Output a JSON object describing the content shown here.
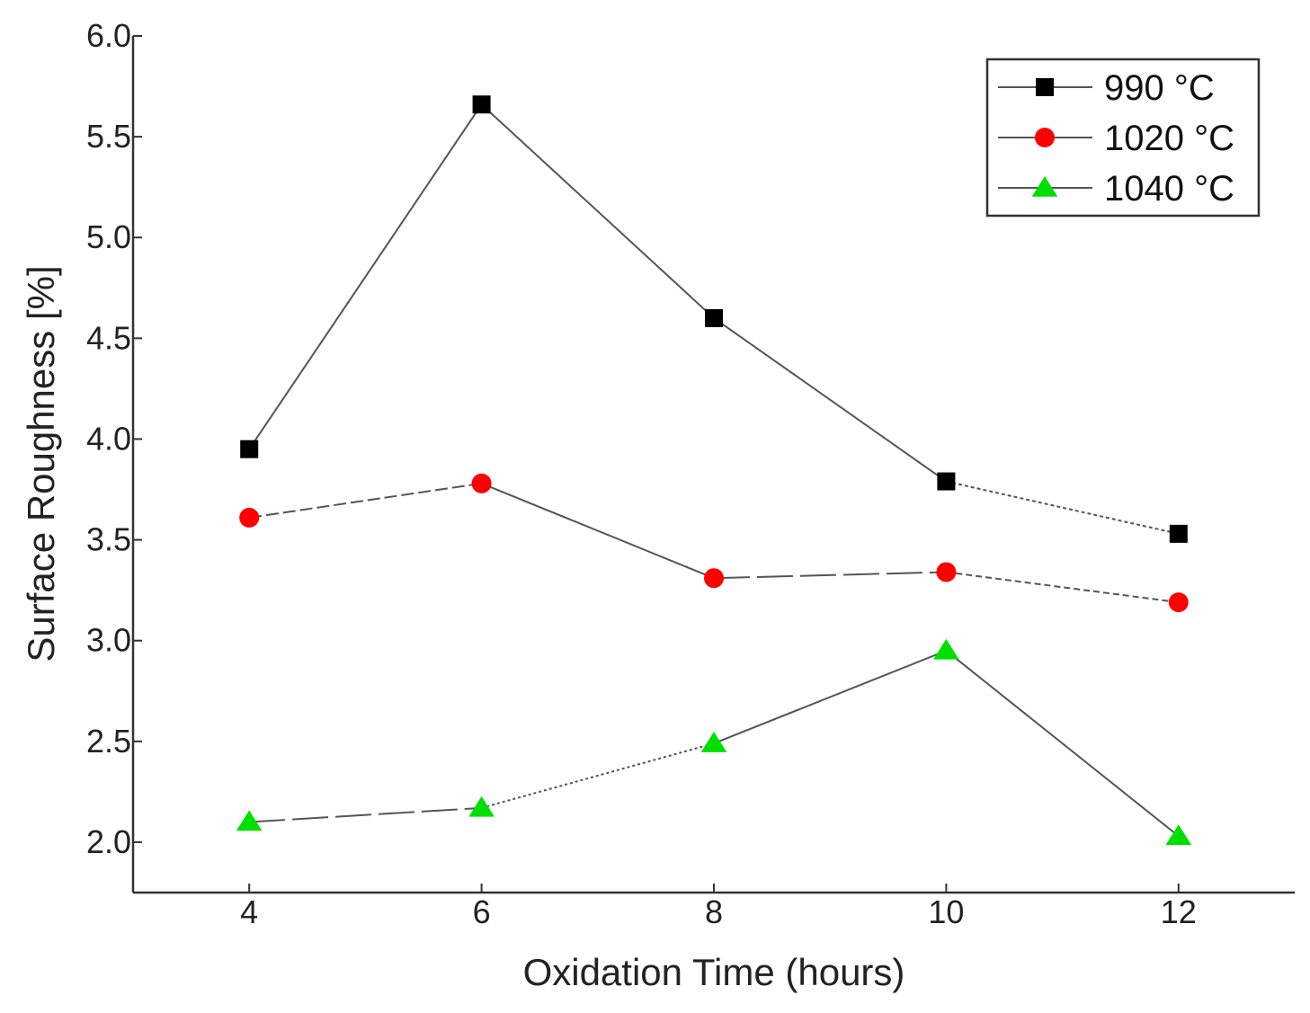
{
  "chart_data": {
    "type": "line",
    "title": "",
    "xlabel": "Oxidation Time (hours)",
    "ylabel": "Surface Roughness [%]",
    "xlim": [
      3,
      13
    ],
    "ylim": [
      1.75,
      6.0
    ],
    "xticks": [
      "4",
      "6",
      "8",
      "10",
      "12"
    ],
    "yticks": [
      "2.0",
      "2.5",
      "3.0",
      "3.5",
      "4.0",
      "4.5",
      "5.0",
      "5.5",
      "6.0"
    ],
    "grid": false,
    "legend_position": "top-right",
    "x": [
      4,
      6,
      8,
      10,
      12
    ],
    "series": [
      {
        "name": "990 °C",
        "values": [
          3.95,
          5.66,
          4.6,
          3.79,
          3.53
        ],
        "marker": "square",
        "color": "#000000"
      },
      {
        "name": "1020 °C",
        "values": [
          3.61,
          3.78,
          3.31,
          3.34,
          3.19
        ],
        "marker": "circle",
        "color": "#ff0000"
      },
      {
        "name": "1040 °C",
        "values": [
          2.1,
          2.17,
          2.49,
          2.95,
          2.03
        ],
        "marker": "triangle",
        "color": "#00e000"
      }
    ]
  }
}
